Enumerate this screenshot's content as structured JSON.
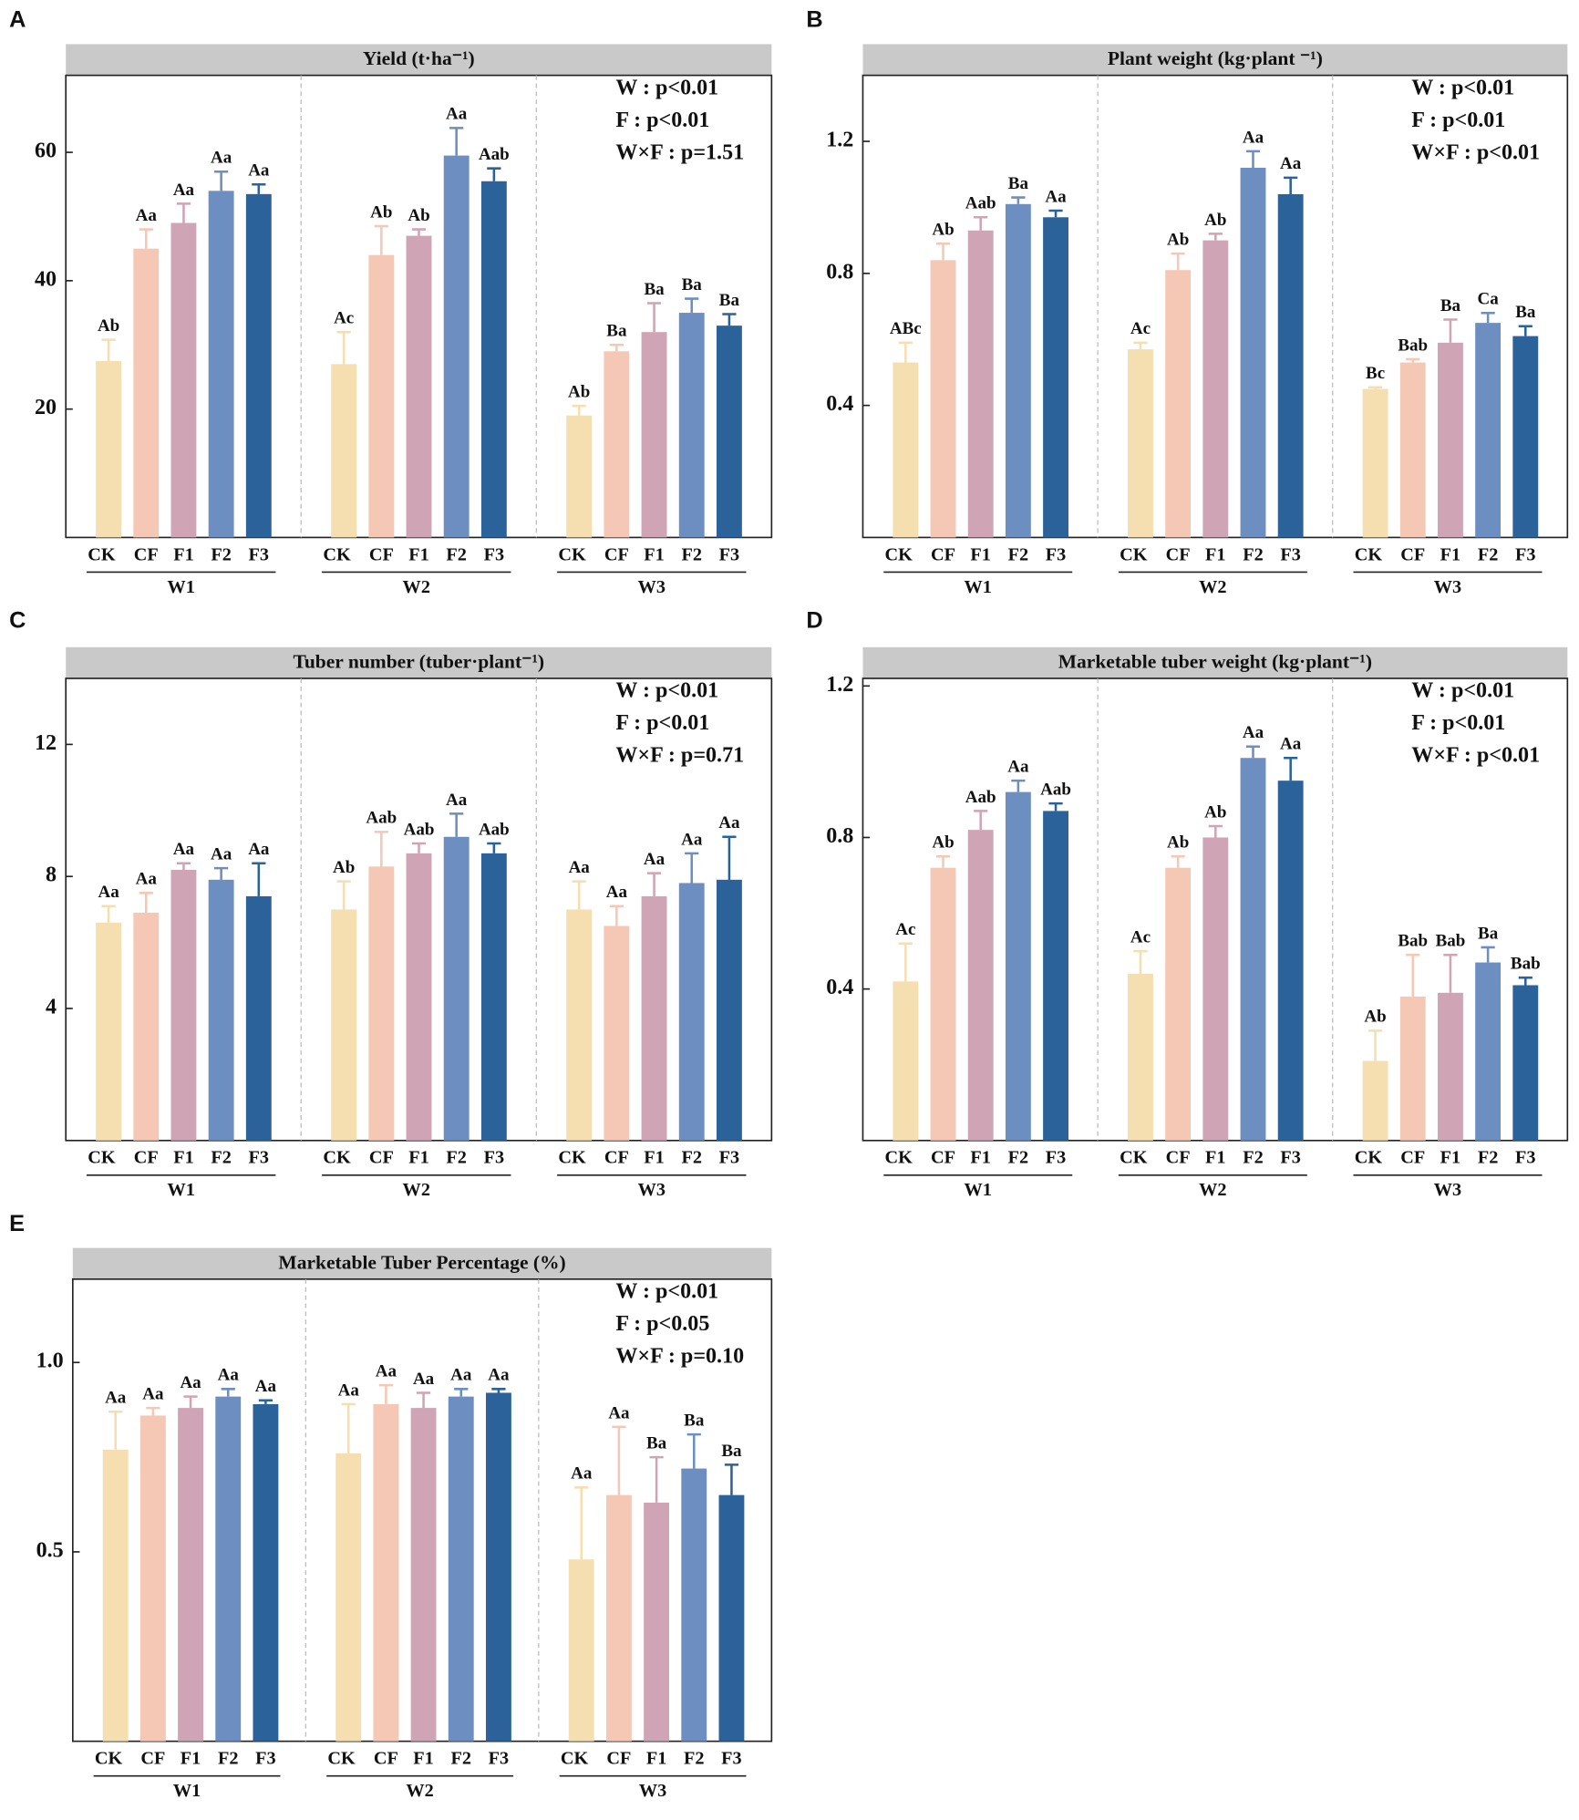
{
  "chart_data": [
    {
      "type": "bar",
      "panel": "A",
      "title": "Yield (t·ha⁻¹)",
      "groups": [
        "W1",
        "W2",
        "W3"
      ],
      "categories": [
        "CK",
        "CF",
        "F1",
        "F2",
        "F3"
      ],
      "colors": [
        "#f5deb0",
        "#f5c8b6",
        "#cfa4b4",
        "#6c8ec0",
        "#2a6299"
      ],
      "values": [
        [
          27.5,
          45,
          49,
          54,
          53.5
        ],
        [
          27,
          44,
          47,
          59.5,
          55.5
        ],
        [
          19,
          29,
          32,
          35,
          33
        ]
      ],
      "errors": [
        [
          3.3,
          3,
          3,
          3,
          1.5
        ],
        [
          5,
          4.5,
          1,
          4.3,
          2
        ],
        [
          1.5,
          1,
          4.5,
          2.2,
          1.8
        ]
      ],
      "letters": [
        [
          "Ab",
          "Aa",
          "Aa",
          "Aa",
          "Aa"
        ],
        [
          "Ac",
          "Ab",
          "Ab",
          "Aa",
          "Aab"
        ],
        [
          "Ab",
          "Ba",
          "Ba",
          "Ba",
          "Ba"
        ]
      ],
      "stats": [
        "W : p<0.01",
        "F : p<0.01",
        "W×F : p=1.51"
      ],
      "ylim": [
        0,
        72
      ],
      "yticks": [
        20,
        40,
        60
      ]
    },
    {
      "type": "bar",
      "panel": "B",
      "title": "Plant weight (kg·plant ⁻¹)",
      "groups": [
        "W1",
        "W2",
        "W3"
      ],
      "categories": [
        "CK",
        "CF",
        "F1",
        "F2",
        "F3"
      ],
      "colors": [
        "#f5deb0",
        "#f5c8b6",
        "#cfa4b4",
        "#6c8ec0",
        "#2a6299"
      ],
      "values": [
        [
          0.53,
          0.84,
          0.93,
          1.01,
          0.97
        ],
        [
          0.57,
          0.81,
          0.9,
          1.12,
          1.04
        ],
        [
          0.45,
          0.53,
          0.59,
          0.65,
          0.61
        ]
      ],
      "errors": [
        [
          0.06,
          0.05,
          0.04,
          0.02,
          0.02
        ],
        [
          0.02,
          0.05,
          0.02,
          0.05,
          0.05
        ],
        [
          0.005,
          0.01,
          0.07,
          0.03,
          0.03
        ]
      ],
      "letters": [
        [
          "ABc",
          "Ab",
          "Aab",
          "Ba",
          "Aa"
        ],
        [
          "Ac",
          "Ab",
          "Ab",
          "Aa",
          "Aa"
        ],
        [
          "Bc",
          "Bab",
          "Ba",
          "Ca",
          "Ba"
        ]
      ],
      "stats": [
        "W : p<0.01",
        "F : p<0.01",
        "W×F : p<0.01"
      ],
      "ylim": [
        0,
        1.4
      ],
      "yticks": [
        0.4,
        0.8,
        1.2
      ]
    },
    {
      "type": "bar",
      "panel": "C",
      "title": "Tuber number (tuber·plant⁻¹)",
      "groups": [
        "W1",
        "W2",
        "W3"
      ],
      "categories": [
        "CK",
        "CF",
        "F1",
        "F2",
        "F3"
      ],
      "colors": [
        "#f5deb0",
        "#f5c8b6",
        "#cfa4b4",
        "#6c8ec0",
        "#2a6299"
      ],
      "values": [
        [
          6.6,
          6.9,
          8.2,
          7.9,
          7.4
        ],
        [
          7,
          8.3,
          8.7,
          9.2,
          8.7
        ],
        [
          7,
          6.5,
          7.4,
          7.8,
          7.9
        ]
      ],
      "errors": [
        [
          0.5,
          0.6,
          0.2,
          0.35,
          1
        ],
        [
          0.85,
          1.05,
          0.3,
          0.7,
          0.3
        ],
        [
          0.85,
          0.6,
          0.7,
          0.9,
          1.3
        ]
      ],
      "letters": [
        [
          "Aa",
          "Aa",
          "Aa",
          "Aa",
          "Aa"
        ],
        [
          "Ab",
          "Aab",
          "Aab",
          "Aa",
          "Aab"
        ],
        [
          "Aa",
          "Aa",
          "Aa",
          "Aa",
          "Aa"
        ]
      ],
      "stats": [
        "W : p<0.01",
        "F : p<0.01",
        "W×F : p=0.71"
      ],
      "ylim": [
        0,
        14
      ],
      "yticks": [
        4,
        8,
        12
      ]
    },
    {
      "type": "bar",
      "panel": "D",
      "title": "Marketable tuber weight (kg·plant⁻¹)",
      "groups": [
        "W1",
        "W2",
        "W3"
      ],
      "categories": [
        "CK",
        "CF",
        "F1",
        "F2",
        "F3"
      ],
      "colors": [
        "#f5deb0",
        "#f5c8b6",
        "#cfa4b4",
        "#6c8ec0",
        "#2a6299"
      ],
      "values": [
        [
          0.42,
          0.72,
          0.82,
          0.92,
          0.87
        ],
        [
          0.44,
          0.72,
          0.8,
          1.01,
          0.95
        ],
        [
          0.21,
          0.38,
          0.39,
          0.47,
          0.41
        ]
      ],
      "errors": [
        [
          0.1,
          0.03,
          0.05,
          0.03,
          0.02
        ],
        [
          0.06,
          0.03,
          0.03,
          0.03,
          0.06
        ],
        [
          0.08,
          0.11,
          0.1,
          0.04,
          0.02
        ]
      ],
      "letters": [
        [
          "Ac",
          "Ab",
          "Aab",
          "Aa",
          "Aab"
        ],
        [
          "Ac",
          "Ab",
          "Ab",
          "Aa",
          "Aa"
        ],
        [
          "Ab",
          "Bab",
          "Bab",
          "Ba",
          "Bab"
        ]
      ],
      "stats": [
        "W : p<0.01",
        "F : p<0.01",
        "W×F : p<0.01"
      ],
      "ylim": [
        0,
        1.22
      ],
      "yticks": [
        0.4,
        0.8,
        1.2
      ]
    },
    {
      "type": "bar",
      "panel": "E",
      "title": "Marketable Tuber Percentage (%)",
      "groups": [
        "W1",
        "W2",
        "W3"
      ],
      "categories": [
        "CK",
        "CF",
        "F1",
        "F2",
        "F3"
      ],
      "colors": [
        "#f5deb0",
        "#f5c8b6",
        "#cfa4b4",
        "#6c8ec0",
        "#2a6299"
      ],
      "values": [
        [
          0.77,
          0.86,
          0.88,
          0.91,
          0.89
        ],
        [
          0.76,
          0.89,
          0.88,
          0.91,
          0.92
        ],
        [
          0.48,
          0.65,
          0.63,
          0.72,
          0.65
        ]
      ],
      "errors": [
        [
          0.1,
          0.02,
          0.03,
          0.02,
          0.01
        ],
        [
          0.13,
          0.05,
          0.04,
          0.02,
          0.01
        ],
        [
          0.19,
          0.18,
          0.12,
          0.09,
          0.08
        ]
      ],
      "letters": [
        [
          "Aa",
          "Aa",
          "Aa",
          "Aa",
          "Aa"
        ],
        [
          "Aa",
          "Aa",
          "Aa",
          "Aa",
          "Aa"
        ],
        [
          "Aa",
          "Aa",
          "Ba",
          "Ba",
          "Ba"
        ]
      ],
      "stats": [
        "W : p<0.01",
        "F : p<0.05",
        "W×F : p=0.10"
      ],
      "ylim": [
        0,
        1.22
      ],
      "yticks": [
        {
          "value": 0.5,
          "label": "0.5"
        },
        {
          "value": 1,
          "label": "1.0"
        }
      ]
    }
  ]
}
